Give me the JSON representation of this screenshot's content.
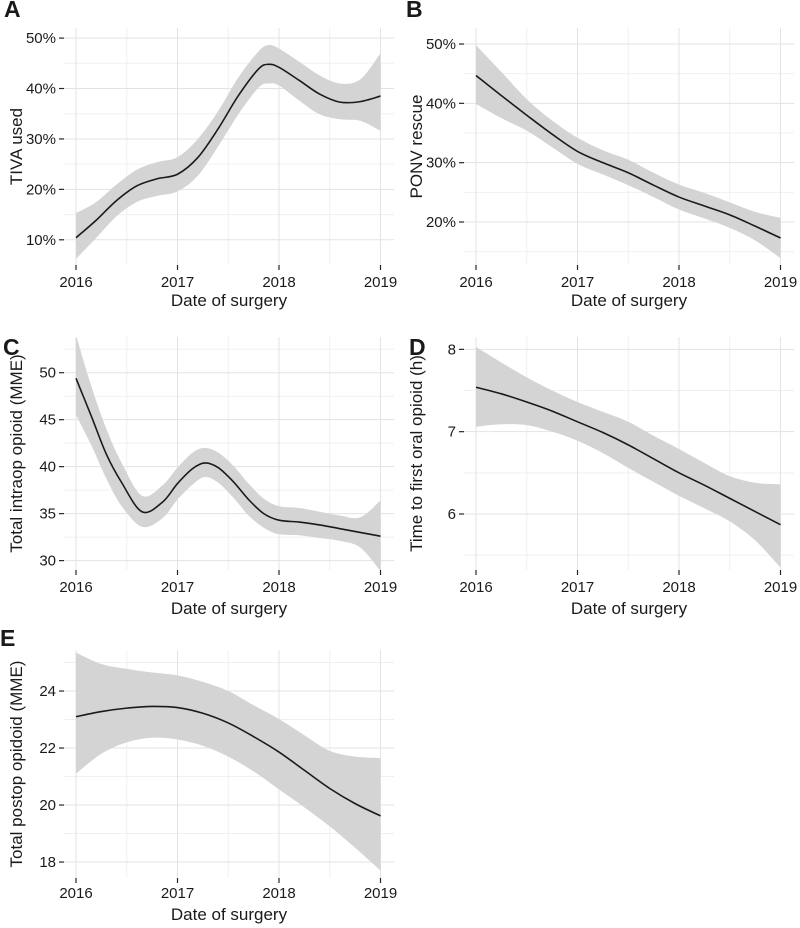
{
  "figure": {
    "background": "#ffffff",
    "line_color": "#1a1a1a",
    "band_color": "#d4d4d4",
    "grid_major_color": "#e3e3e3",
    "grid_minor_color": "#f0f0f0",
    "tick_color": "#262626",
    "text_color": "#1a1a1a"
  },
  "chart_data": [
    {
      "type": "line",
      "panel_label": "A",
      "ylabel": "TIVA used",
      "xlabel": "Date of surgery",
      "legend": "none",
      "grid": "on",
      "band": "95% confidence ribbon",
      "x_ticks": [
        2016,
        2017,
        2018,
        2019
      ],
      "x_tick_labels": [
        "2016",
        "2017",
        "2018",
        "2019"
      ],
      "x_minor": [
        2016.5,
        2017.5,
        2018.5
      ],
      "y_ticks": [
        10,
        20,
        30,
        40,
        50
      ],
      "y_tick_labels": [
        "10%",
        "20%",
        "30%",
        "40%",
        "50%"
      ],
      "y_minor": [
        15,
        25,
        35,
        45
      ],
      "xlim": [
        2015.86,
        2019.14
      ],
      "ylim": [
        5.0,
        52.0
      ],
      "x": [
        2016,
        2016.2,
        2016.4,
        2016.6,
        2016.8,
        2017,
        2017.2,
        2017.4,
        2017.6,
        2017.8,
        2017.9,
        2018,
        2018.2,
        2018.4,
        2018.6,
        2018.8,
        2019
      ],
      "y": [
        10.4,
        13.9,
        17.8,
        20.7,
        22.1,
        23.0,
        26.3,
        32.0,
        38.6,
        43.9,
        44.8,
        44.2,
        41.6,
        38.9,
        37.3,
        37.4,
        38.5
      ],
      "lo": [
        6.2,
        10.4,
        14.7,
        17.5,
        18.7,
        19.6,
        22.7,
        28.5,
        34.9,
        40.2,
        41.0,
        40.6,
        37.6,
        34.9,
        33.9,
        33.6,
        31.6
      ],
      "hi": [
        15.3,
        17.5,
        21.0,
        23.9,
        25.4,
        26.4,
        30.0,
        35.5,
        42.2,
        47.4,
        48.6,
        47.9,
        45.3,
        42.6,
        41.0,
        41.8,
        47.0
      ]
    },
    {
      "type": "line",
      "panel_label": "B",
      "ylabel": "PONV rescue",
      "xlabel": "Date of surgery",
      "legend": "none",
      "grid": "on",
      "band": "95% confidence ribbon",
      "x_ticks": [
        2016,
        2017,
        2018,
        2019
      ],
      "x_tick_labels": [
        "2016",
        "2017",
        "2018",
        "2019"
      ],
      "x_minor": [
        2016.5,
        2017.5,
        2018.5
      ],
      "y_ticks": [
        20,
        30,
        40,
        50
      ],
      "y_tick_labels": [
        "20%",
        "30%",
        "40%",
        "50%"
      ],
      "y_minor": [
        15,
        25,
        35,
        45
      ],
      "xlim": [
        2015.86,
        2019.14
      ],
      "ylim": [
        12.75,
        52.7
      ],
      "x": [
        2016,
        2016.25,
        2016.5,
        2016.75,
        2017,
        2017.25,
        2017.5,
        2017.75,
        2018,
        2018.25,
        2018.5,
        2018.75,
        2019
      ],
      "y": [
        44.7,
        41.3,
        38.0,
        34.8,
        31.9,
        30.0,
        28.3,
        26.2,
        24.2,
        22.7,
        21.2,
        19.3,
        17.3
      ],
      "lo": [
        39.9,
        37.5,
        35.4,
        32.6,
        29.8,
        28.0,
        26.2,
        24.2,
        22.1,
        20.6,
        19.0,
        16.9,
        13.9
      ],
      "hi": [
        49.8,
        45.3,
        40.7,
        37.1,
        34.2,
        32.1,
        30.5,
        28.3,
        26.3,
        24.9,
        23.3,
        21.7,
        20.7
      ]
    },
    {
      "type": "line",
      "panel_label": "C",
      "ylabel": "Total intraop opioid (MME)",
      "xlabel": "Date of surgery",
      "legend": "none",
      "grid": "on",
      "band": "95% confidence ribbon",
      "x_ticks": [
        2016,
        2017,
        2018,
        2019
      ],
      "x_tick_labels": [
        "2016",
        "2017",
        "2018",
        "2019"
      ],
      "x_minor": [
        2016.5,
        2017.5,
        2018.5
      ],
      "y_ticks": [
        30,
        35,
        40,
        45,
        50
      ],
      "y_tick_labels": [
        "30",
        "35",
        "40",
        "45",
        "50"
      ],
      "y_minor": [
        32.5,
        37.5,
        42.5,
        47.5,
        52.5
      ],
      "xlim": [
        2015.86,
        2019.14
      ],
      "ylim": [
        29.0,
        53.8
      ],
      "x": [
        2016,
        2016.15,
        2016.3,
        2016.45,
        2016.65,
        2016.85,
        2017,
        2017.15,
        2017.27,
        2017.4,
        2017.55,
        2017.7,
        2017.85,
        2018,
        2018.2,
        2018.4,
        2018.6,
        2018.8,
        2019
      ],
      "y": [
        49.4,
        45.4,
        41.3,
        38.3,
        35.2,
        36.2,
        38.2,
        39.8,
        40.4,
        39.9,
        38.4,
        36.5,
        35.0,
        34.3,
        34.1,
        33.8,
        33.4,
        33.0,
        32.6
      ],
      "lo": [
        45.5,
        42.3,
        38.7,
        35.8,
        33.6,
        34.5,
        36.5,
        38.1,
        38.9,
        38.3,
        36.7,
        34.8,
        33.5,
        32.8,
        32.7,
        32.4,
        32.1,
        31.4,
        28.9
      ],
      "hi": [
        54.0,
        48.6,
        44.0,
        40.4,
        36.9,
        38.0,
        39.9,
        41.5,
        42.0,
        41.5,
        40.1,
        38.2,
        36.6,
        35.8,
        35.6,
        35.2,
        34.8,
        34.6,
        36.4
      ]
    },
    {
      "type": "line",
      "panel_label": "D",
      "ylabel": "Time to first oral opioid (h)",
      "xlabel": "Date of surgery",
      "legend": "none",
      "grid": "on",
      "band": "95% confidence ribbon",
      "x_ticks": [
        2016,
        2017,
        2018,
        2019
      ],
      "x_tick_labels": [
        "2016",
        "2017",
        "2018",
        "2019"
      ],
      "x_minor": [
        2016.5,
        2017.5,
        2018.5
      ],
      "y_ticks": [
        6,
        7,
        8
      ],
      "y_tick_labels": [
        "6",
        "7",
        "8"
      ],
      "y_minor": [
        5.5,
        6.5,
        7.5
      ],
      "xlim": [
        2015.86,
        2019.14
      ],
      "ylim": [
        5.32,
        8.15
      ],
      "x": [
        2016,
        2016.25,
        2016.5,
        2016.75,
        2017,
        2017.25,
        2017.5,
        2017.75,
        2018,
        2018.25,
        2018.5,
        2018.75,
        2019
      ],
      "y": [
        7.54,
        7.46,
        7.36,
        7.25,
        7.12,
        6.99,
        6.84,
        6.67,
        6.5,
        6.35,
        6.19,
        6.03,
        5.87
      ],
      "lo": [
        7.06,
        7.09,
        7.08,
        7.0,
        6.89,
        6.74,
        6.56,
        6.39,
        6.22,
        6.07,
        5.91,
        5.68,
        5.35
      ],
      "hi": [
        8.03,
        7.84,
        7.66,
        7.5,
        7.36,
        7.24,
        7.12,
        6.95,
        6.79,
        6.62,
        6.46,
        6.38,
        6.36
      ]
    },
    {
      "type": "line",
      "panel_label": "E",
      "ylabel": "Total postop opidoid (MME)",
      "xlabel": "Date of surgery",
      "legend": "none",
      "grid": "on",
      "band": "95% confidence ribbon",
      "x_ticks": [
        2016,
        2017,
        2018,
        2019
      ],
      "x_tick_labels": [
        "2016",
        "2017",
        "2018",
        "2019"
      ],
      "x_minor": [
        2016.5,
        2017.5,
        2018.5
      ],
      "y_ticks": [
        18,
        20,
        22,
        24
      ],
      "y_tick_labels": [
        "18",
        "20",
        "22",
        "24"
      ],
      "y_minor": [
        19,
        21,
        23,
        25
      ],
      "xlim": [
        2015.86,
        2019.14
      ],
      "ylim": [
        17.44,
        25.44
      ],
      "x": [
        2016,
        2016.25,
        2016.5,
        2016.75,
        2017,
        2017.25,
        2017.5,
        2017.75,
        2018,
        2018.25,
        2018.5,
        2018.75,
        2019
      ],
      "y": [
        23.1,
        23.28,
        23.4,
        23.46,
        23.42,
        23.22,
        22.88,
        22.4,
        21.86,
        21.22,
        20.58,
        20.05,
        19.62
      ],
      "lo": [
        21.1,
        21.8,
        22.2,
        22.36,
        22.3,
        22.08,
        21.7,
        21.18,
        20.55,
        19.92,
        19.25,
        18.5,
        17.7
      ],
      "hi": [
        25.35,
        24.95,
        24.78,
        24.65,
        24.55,
        24.32,
        24.0,
        23.5,
        23.02,
        22.45,
        21.9,
        21.7,
        21.65
      ]
    }
  ]
}
